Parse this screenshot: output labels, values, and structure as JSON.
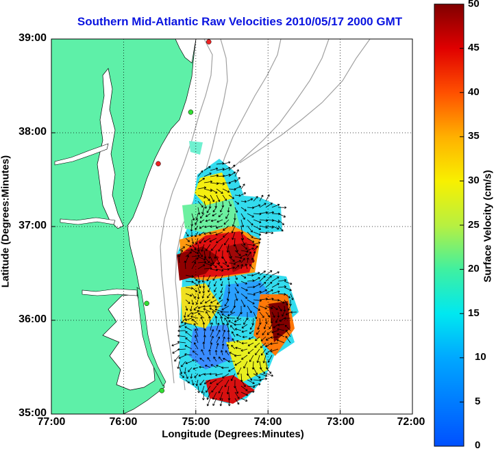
{
  "title": "Southern Mid-Atlantic Raw Velocities 2010/05/17 2000 GMT",
  "x_axis": {
    "label": "Longitude (Degrees:Minutes)",
    "ticks": [
      "77:00",
      "76:00",
      "75:00",
      "74:00",
      "73:00",
      "72:00"
    ]
  },
  "y_axis": {
    "label": "Latitude (Degrees:Minutes)",
    "ticks": [
      "39:00",
      "38:00",
      "37:00",
      "36:00",
      "35:00"
    ]
  },
  "colorbar": {
    "label": "Surface Velocity (cm/s)",
    "ticks": [
      "50",
      "45",
      "40",
      "35",
      "30",
      "25",
      "20",
      "15",
      "10",
      "5",
      "0"
    ],
    "range": [
      0,
      50
    ]
  },
  "colors": {
    "land": "#5ef0a8",
    "title": "#0a14e0",
    "bathymetry": "#a0a0a0",
    "station_green": "#33dd33",
    "station_red": "#ee2222"
  },
  "map": {
    "lon_range": [
      -77,
      -72
    ],
    "lat_range": [
      35,
      39
    ],
    "grid": true,
    "stations": [
      {
        "lon": -74.82,
        "lat": 38.97,
        "status": "red"
      },
      {
        "lon": -75.07,
        "lat": 38.22,
        "status": "green"
      },
      {
        "lon": -75.52,
        "lat": 37.67,
        "status": "red"
      },
      {
        "lon": -75.68,
        "lat": 36.18,
        "status": "green"
      },
      {
        "lon": -75.47,
        "lat": 35.25,
        "status": "green"
      }
    ]
  }
}
